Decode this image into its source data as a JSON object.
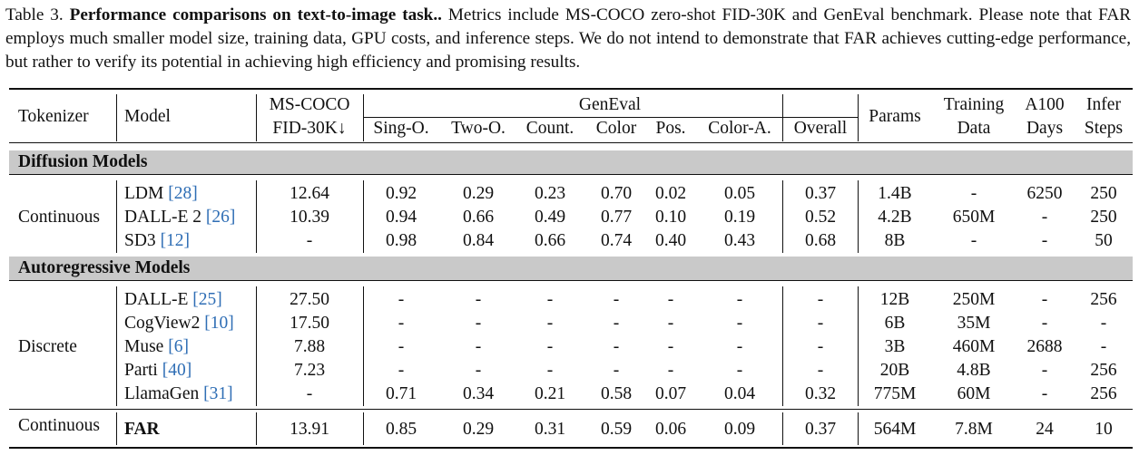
{
  "caption": {
    "label": "Table 3.",
    "title": "Performance comparisons on text-to-image task..",
    "text": "Metrics include MS-COCO zero-shot FID-30K and GenEval benchmark. Please note that FAR employs much smaller model size, training data, GPU costs, and inference steps. We do not intend to demonstrate that FAR achieves cutting-edge performance, but rather to verify its potential in achieving high efficiency and promising results."
  },
  "table": {
    "header": {
      "tokenizer": "Tokenizer",
      "model": "Model",
      "mscoco": [
        "MS-COCO",
        "FID-30K↓"
      ],
      "geneval": "GenEval",
      "geneval_columns": [
        "Sing-O.",
        "Two-O.",
        "Count.",
        "Color",
        "Pos.",
        "Color-A.",
        "Overall"
      ],
      "params": "Params",
      "training": [
        "Training",
        "Data"
      ],
      "a100": [
        "A100",
        "Days"
      ],
      "infer": [
        "Infer",
        "Steps"
      ]
    },
    "sections": [
      {
        "title": "Diffusion Models",
        "groups": [
          {
            "tokenizer": "Continuous",
            "rows": [
              {
                "model": "LDM",
                "ref": "[28]",
                "values": [
                  "12.64",
                  "0.92",
                  "0.29",
                  "0.23",
                  "0.70",
                  "0.02",
                  "0.05",
                  "0.37",
                  "1.4B",
                  "-",
                  "6250",
                  "250"
                ]
              },
              {
                "model": "DALL-E 2",
                "ref": "[26]",
                "values": [
                  "10.39",
                  "0.94",
                  "0.66",
                  "0.49",
                  "0.77",
                  "0.10",
                  "0.19",
                  "0.52",
                  "4.2B",
                  "650M",
                  "-",
                  "250"
                ]
              },
              {
                "model": "SD3",
                "ref": "[12]",
                "values": [
                  "-",
                  "0.98",
                  "0.84",
                  "0.66",
                  "0.74",
                  "0.40",
                  "0.43",
                  "0.68",
                  "8B",
                  "-",
                  "-",
                  "50"
                ]
              }
            ]
          }
        ]
      },
      {
        "title": "Autoregressive Models",
        "groups": [
          {
            "tokenizer": "Discrete",
            "rows": [
              {
                "model": "DALL-E",
                "ref": "[25]",
                "values": [
                  "27.50",
                  "-",
                  "-",
                  "-",
                  "-",
                  "-",
                  "-",
                  "-",
                  "12B",
                  "250M",
                  "-",
                  "256"
                ]
              },
              {
                "model": "CogView2",
                "ref": "[10]",
                "values": [
                  "17.50",
                  "-",
                  "-",
                  "-",
                  "-",
                  "-",
                  "-",
                  "-",
                  "6B",
                  "35M",
                  "-",
                  "-"
                ]
              },
              {
                "model": "Muse",
                "ref": "[6]",
                "values": [
                  "7.88",
                  "-",
                  "-",
                  "-",
                  "-",
                  "-",
                  "-",
                  "-",
                  "3B",
                  "460M",
                  "2688",
                  "-"
                ]
              },
              {
                "model": "Parti",
                "ref": "[40]",
                "values": [
                  "7.23",
                  "-",
                  "-",
                  "-",
                  "-",
                  "-",
                  "-",
                  "-",
                  "20B",
                  "4.8B",
                  "-",
                  "256"
                ]
              },
              {
                "model": "LlamaGen",
                "ref": "[31]",
                "values": [
                  "-",
                  "0.71",
                  "0.34",
                  "0.21",
                  "0.58",
                  "0.07",
                  "0.04",
                  "0.32",
                  "775M",
                  "60M",
                  "-",
                  "256"
                ]
              }
            ]
          }
        ]
      },
      {
        "groups": [
          {
            "tokenizer": "Continuous",
            "rows": [
              {
                "model": "FAR",
                "emphasis": true,
                "values": [
                  "13.91",
                  "0.85",
                  "0.29",
                  "0.31",
                  "0.59",
                  "0.06",
                  "0.09",
                  "0.37",
                  "564M",
                  "7.8M",
                  "24",
                  "10"
                ]
              }
            ]
          }
        ]
      }
    ]
  }
}
